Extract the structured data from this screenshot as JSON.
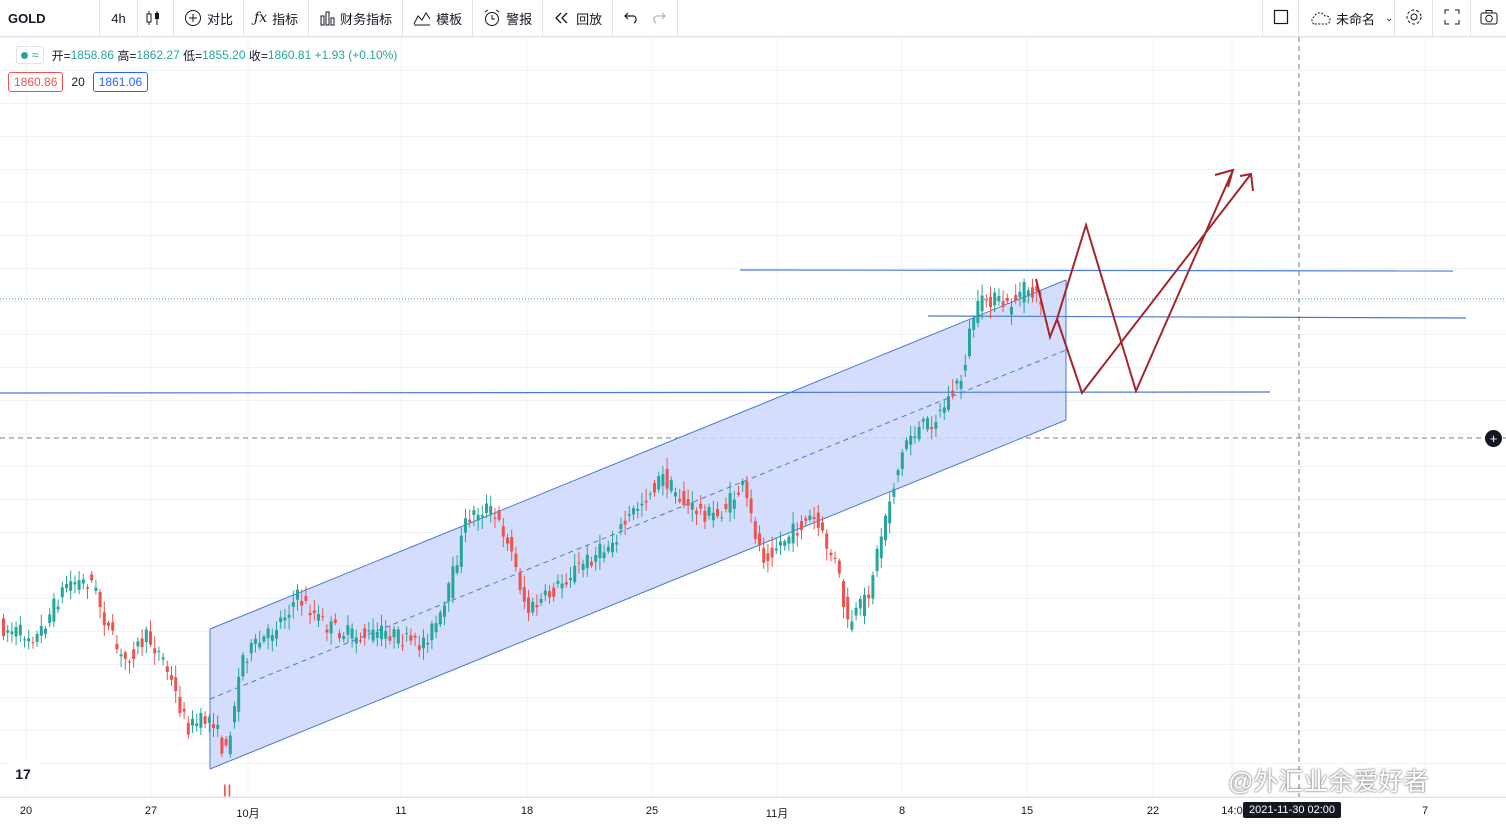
{
  "toolbar": {
    "symbol": "GOLD",
    "interval": "4h",
    "compare": "对比",
    "indicators": "指标",
    "financials": "财务指标",
    "templates": "模板",
    "alerts": "警报",
    "replay": "回放",
    "layout_name": "未命名"
  },
  "legend": {
    "open_label": "开=",
    "open": "1858.86",
    "high_label": "高=",
    "high": "1862.27",
    "low_label": "低=",
    "low": "1855.20",
    "close_label": "收=",
    "close": "1860.81",
    "change": "+1.93 (+0.10%)"
  },
  "spread": {
    "bid": "1860.86",
    "value": "20",
    "ask": "1861.06"
  },
  "time_axis": {
    "labels": [
      "20",
      "27",
      "10月",
      "11",
      "18",
      "25",
      "11月",
      "8",
      "15",
      "22",
      "14:0",
      "7"
    ],
    "crosshair_date": "2021-11-30  02:00"
  },
  "watermark": "@外汇业余爱好者",
  "logo_text": "17",
  "colors": {
    "up": "#26a69a",
    "down": "#ef5350",
    "line": "#4a78d6",
    "channel": "#cdd8fc",
    "arrow": "#a3262b"
  },
  "chart_data": {
    "type": "candlestick",
    "symbol": "GOLD",
    "timeframe": "4h",
    "x_labels": [
      "20",
      "27",
      "10月",
      "11",
      "18",
      "25",
      "11月",
      "8",
      "15",
      "22",
      "7"
    ],
    "approx_close_path": [
      1745,
      1760,
      1745,
      1735,
      1715,
      1755,
      1770,
      1760,
      1790,
      1775,
      1800,
      1795,
      1790,
      1780,
      1760,
      1800,
      1870,
      1880,
      1860,
      1870,
      1830,
      1820,
      1760,
      1790,
      1820,
      1835,
      1850,
      1870,
      1862
    ],
    "horizontal_levels": [
      1869,
      1856,
      1835
    ],
    "channel": "ascending parallel channel with dashed midline",
    "projection": "zigzag: down to 1835, up to 1875, down to 1835, up to new highs"
  }
}
